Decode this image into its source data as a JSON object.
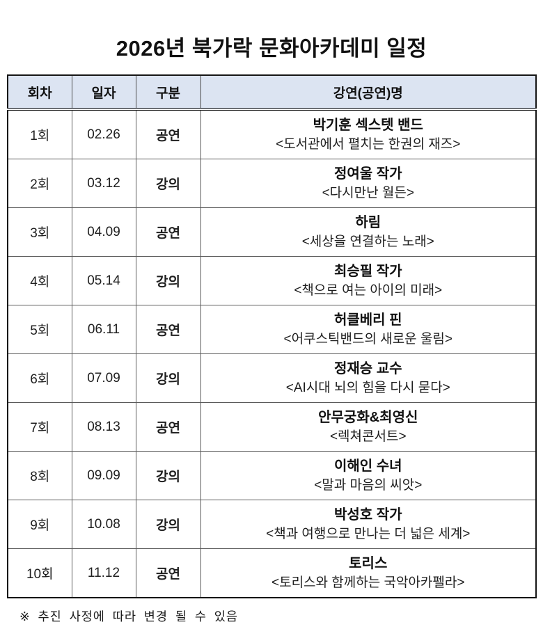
{
  "title": "2026년 북가락 문화아카데미 일정",
  "table": {
    "headers": [
      "회차",
      "일자",
      "구분",
      "강연(공연)명"
    ],
    "rows": [
      {
        "session": "1회",
        "date": "02.26",
        "category": "공연",
        "name": "박기훈 섹스텟 밴드",
        "subtitle": "<도서관에서 펼치는 한권의 재즈>"
      },
      {
        "session": "2회",
        "date": "03.12",
        "category": "강의",
        "name": "정여울 작가",
        "subtitle": "<다시만난 월든>"
      },
      {
        "session": "3회",
        "date": "04.09",
        "category": "공연",
        "name": "하림",
        "subtitle": "<세상을 연결하는 노래>"
      },
      {
        "session": "4회",
        "date": "05.14",
        "category": "강의",
        "name": "최승필 작가",
        "subtitle": "<책으로 여는 아이의 미래>"
      },
      {
        "session": "5회",
        "date": "06.11",
        "category": "공연",
        "name": "허클베리 핀",
        "subtitle": "<어쿠스틱밴드의 새로운 울림>"
      },
      {
        "session": "6회",
        "date": "07.09",
        "category": "강의",
        "name": "정재승 교수",
        "subtitle": "<AI시대 뇌의 힘을 다시 묻다>"
      },
      {
        "session": "7회",
        "date": "08.13",
        "category": "공연",
        "name": "안무궁화&최영신",
        "subtitle": "<렉쳐콘서트>"
      },
      {
        "session": "8회",
        "date": "09.09",
        "category": "강의",
        "name": "이해인 수녀",
        "subtitle": "<말과 마음의 씨앗>"
      },
      {
        "session": "9회",
        "date": "10.08",
        "category": "강의",
        "name": "박성호 작가",
        "subtitle": "<책과 여행으로 만나는 더 넓은 세계>"
      },
      {
        "session": "10회",
        "date": "11.12",
        "category": "공연",
        "name": "토리스",
        "subtitle": "<토리스와 함께하는 국악아카펠라>"
      }
    ]
  },
  "footnote": "※ 추진 사정에 따라 변경 될 수 있음",
  "colors": {
    "header_bg": "#dce4f2",
    "outer_border": "#151515",
    "grid_line": "#5a5a5a",
    "text": "#1a1a1a"
  }
}
